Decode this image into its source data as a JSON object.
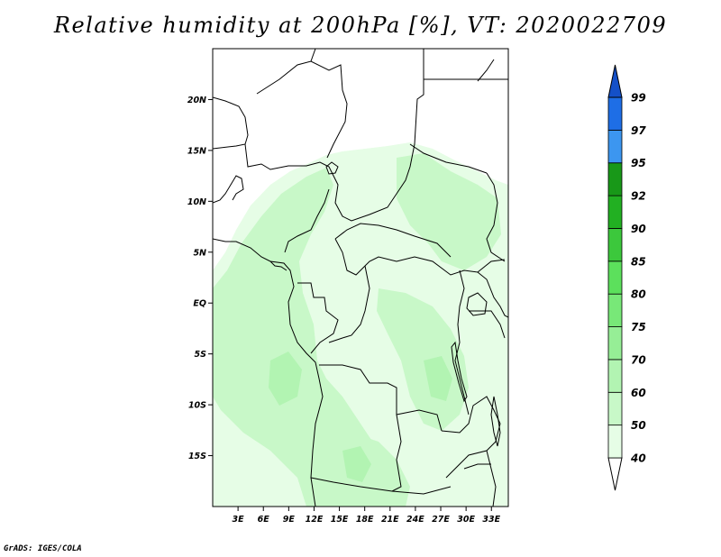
{
  "title": "Relative humidity at 200hPa [%], VT: 2020022709",
  "footer": "GrADS: IGES/COLA",
  "map": {
    "lon_range": [
      0,
      35
    ],
    "lat_range": [
      -20,
      25
    ],
    "x_ticks": [
      "3E",
      "6E",
      "9E",
      "12E",
      "15E",
      "18E",
      "21E",
      "24E",
      "27E",
      "30E",
      "33E"
    ],
    "x_tick_values": [
      3,
      6,
      9,
      12,
      15,
      18,
      21,
      24,
      27,
      30,
      33
    ],
    "y_ticks": [
      "20N",
      "15N",
      "10N",
      "5N",
      "EQ",
      "5S",
      "10S",
      "15S"
    ],
    "y_tick_values": [
      20,
      15,
      10,
      5,
      0,
      -5,
      -10,
      -15
    ]
  },
  "legend": {
    "levels": [
      "40",
      "50",
      "60",
      "70",
      "75",
      "80",
      "85",
      "90",
      "92",
      "95",
      "97",
      "99"
    ],
    "colors": [
      "#ffffff",
      "#e6fde6",
      "#c8f8c8",
      "#b2f4b2",
      "#96ee96",
      "#78e878",
      "#5ce05c",
      "#3cc83c",
      "#22b022",
      "#189818",
      "#3c96f0",
      "#1e6ee6",
      "#1450c8"
    ],
    "colors_note": ""
  }
}
